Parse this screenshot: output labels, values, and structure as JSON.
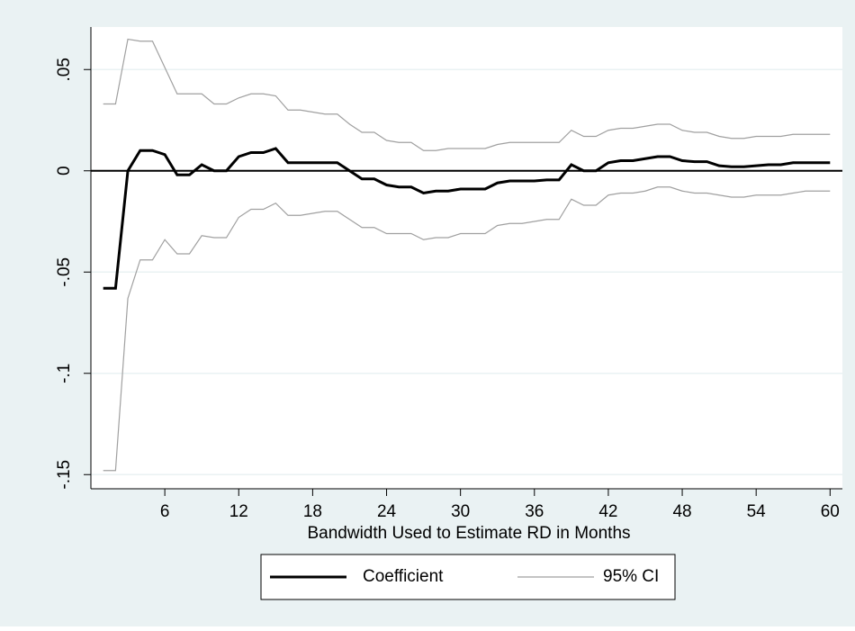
{
  "chart_data": {
    "type": "line",
    "xlabel": "Bandwidth Used to Estimate RD in Months",
    "x": [
      1,
      2,
      3,
      4,
      5,
      6,
      7,
      8,
      9,
      10,
      11,
      12,
      13,
      14,
      15,
      16,
      17,
      18,
      19,
      20,
      21,
      22,
      23,
      24,
      25,
      26,
      27,
      28,
      29,
      30,
      31,
      32,
      33,
      34,
      35,
      36,
      37,
      38,
      39,
      40,
      41,
      42,
      43,
      44,
      45,
      46,
      47,
      48,
      49,
      50,
      51,
      52,
      53,
      54,
      55,
      56,
      57,
      58,
      59,
      60
    ],
    "series": [
      {
        "name": "Coefficient",
        "color": "#000000",
        "values": [
          -0.058,
          -0.058,
          0,
          0.01,
          0.01,
          0.008,
          -0.002,
          -0.002,
          0.003,
          0,
          0,
          0.007,
          0.009,
          0.009,
          0.011,
          0.004,
          0.004,
          0.004,
          0.004,
          0.004,
          0,
          -0.004,
          -0.004,
          -0.007,
          -0.008,
          -0.008,
          -0.011,
          -0.01,
          -0.01,
          -0.009,
          -0.009,
          -0.009,
          -0.006,
          -0.005,
          -0.005,
          -0.005,
          -0.0045,
          -0.0045,
          0.003,
          0,
          0,
          0.004,
          0.005,
          0.005,
          0.006,
          0.007,
          0.007,
          0.005,
          0.0045,
          0.0045,
          0.0025,
          0.002,
          0.002,
          0.0025,
          0.003,
          0.003,
          0.004,
          0.004,
          0.004,
          0.004
        ]
      },
      {
        "name": "95% CI",
        "color": "#a0a0a0",
        "upper": [
          0.033,
          0.033,
          0.065,
          0.064,
          0.064,
          0.051,
          0.038,
          0.038,
          0.038,
          0.033,
          0.033,
          0.036,
          0.038,
          0.038,
          0.037,
          0.03,
          0.03,
          0.029,
          0.028,
          0.028,
          0.023,
          0.019,
          0.019,
          0.015,
          0.014,
          0.014,
          0.01,
          0.01,
          0.011,
          0.011,
          0.011,
          0.011,
          0.013,
          0.014,
          0.014,
          0.014,
          0.014,
          0.014,
          0.02,
          0.017,
          0.017,
          0.02,
          0.021,
          0.021,
          0.022,
          0.023,
          0.023,
          0.02,
          0.019,
          0.019,
          0.017,
          0.016,
          0.016,
          0.017,
          0.017,
          0.017,
          0.018,
          0.018,
          0.018,
          0.018
        ],
        "lower": [
          -0.148,
          -0.148,
          -0.063,
          -0.044,
          -0.044,
          -0.034,
          -0.041,
          -0.041,
          -0.032,
          -0.033,
          -0.033,
          -0.023,
          -0.019,
          -0.019,
          -0.016,
          -0.022,
          -0.022,
          -0.021,
          -0.02,
          -0.02,
          -0.024,
          -0.028,
          -0.028,
          -0.031,
          -0.031,
          -0.031,
          -0.034,
          -0.033,
          -0.033,
          -0.031,
          -0.031,
          -0.031,
          -0.027,
          -0.026,
          -0.026,
          -0.025,
          -0.024,
          -0.024,
          -0.014,
          -0.017,
          -0.017,
          -0.012,
          -0.011,
          -0.011,
          -0.01,
          -0.008,
          -0.008,
          -0.01,
          -0.011,
          -0.011,
          -0.012,
          -0.013,
          -0.013,
          -0.012,
          -0.012,
          -0.012,
          -0.011,
          -0.01,
          -0.01,
          -0.01
        ]
      }
    ],
    "xlim": [
      0,
      61
    ],
    "xticks": [
      6,
      12,
      18,
      24,
      30,
      36,
      42,
      48,
      54,
      60
    ],
    "ylim": [
      -0.157,
      0.071
    ],
    "yticks": [
      {
        "value": 0.05,
        "label": ".05"
      },
      0,
      {
        "value": -0.05,
        "label": "-.05"
      },
      {
        "value": -0.1,
        "label": "-.1"
      },
      {
        "value": -0.15,
        "label": "-.15"
      }
    ],
    "refline": 0,
    "grid": true,
    "legend": "bottom"
  }
}
